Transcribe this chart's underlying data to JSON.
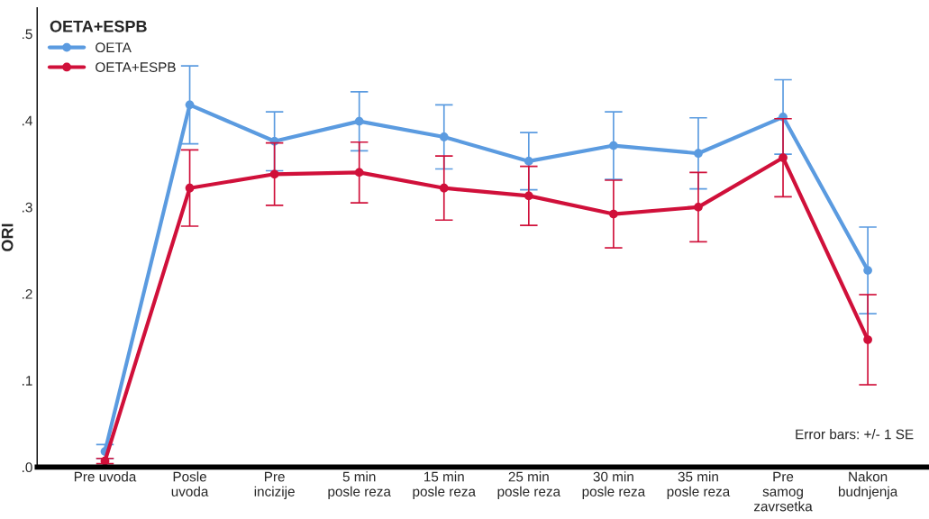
{
  "chart_data": {
    "type": "line",
    "ylabel": "ORI",
    "legend_title": "OETA+ESPB",
    "legend": "top left",
    "marker": "circle",
    "line_style": "solid",
    "grid": false,
    "categories": [
      "Pre uvoda",
      "Posle\nuvoda",
      "Pre\nincizije",
      "5 min\nposle reza",
      "15 min\nposle reza",
      "25 min\nposle reza",
      "30 min\nposle reza",
      "35 min\nposle reza",
      "Pre\nsamog\nzavrsetka",
      "Nakon\nbudnjenja"
    ],
    "ylim": [
      0,
      0.53
    ],
    "yticks": [
      {
        "value": 0,
        "label": ".0"
      },
      {
        "value": 0.1,
        "label": ".1"
      },
      {
        "value": 0.2,
        "label": ".2"
      },
      {
        "value": 0.3,
        "label": ".3"
      },
      {
        "value": 0.4,
        "label": ".4"
      },
      {
        "value": 0.5,
        "label": ".5"
      }
    ],
    "series": [
      {
        "name": "OETA",
        "color": "#5b9be0",
        "values": [
          0.018,
          0.418,
          0.376,
          0.399,
          0.381,
          0.353,
          0.371,
          0.362,
          0.404,
          0.227
        ],
        "errors": [
          0.008,
          0.045,
          0.034,
          0.034,
          0.037,
          0.033,
          0.039,
          0.041,
          0.043,
          0.05
        ]
      },
      {
        "name": "OETA+ESPB",
        "color": "#d0103a",
        "values": [
          0.007,
          0.322,
          0.338,
          0.34,
          0.322,
          0.313,
          0.292,
          0.3,
          0.357,
          0.147
        ],
        "errors": [
          0.003,
          0.044,
          0.036,
          0.035,
          0.037,
          0.034,
          0.039,
          0.04,
          0.045,
          0.052
        ]
      }
    ],
    "annotations": [
      "Error bars: +/- 1 SE"
    ]
  }
}
